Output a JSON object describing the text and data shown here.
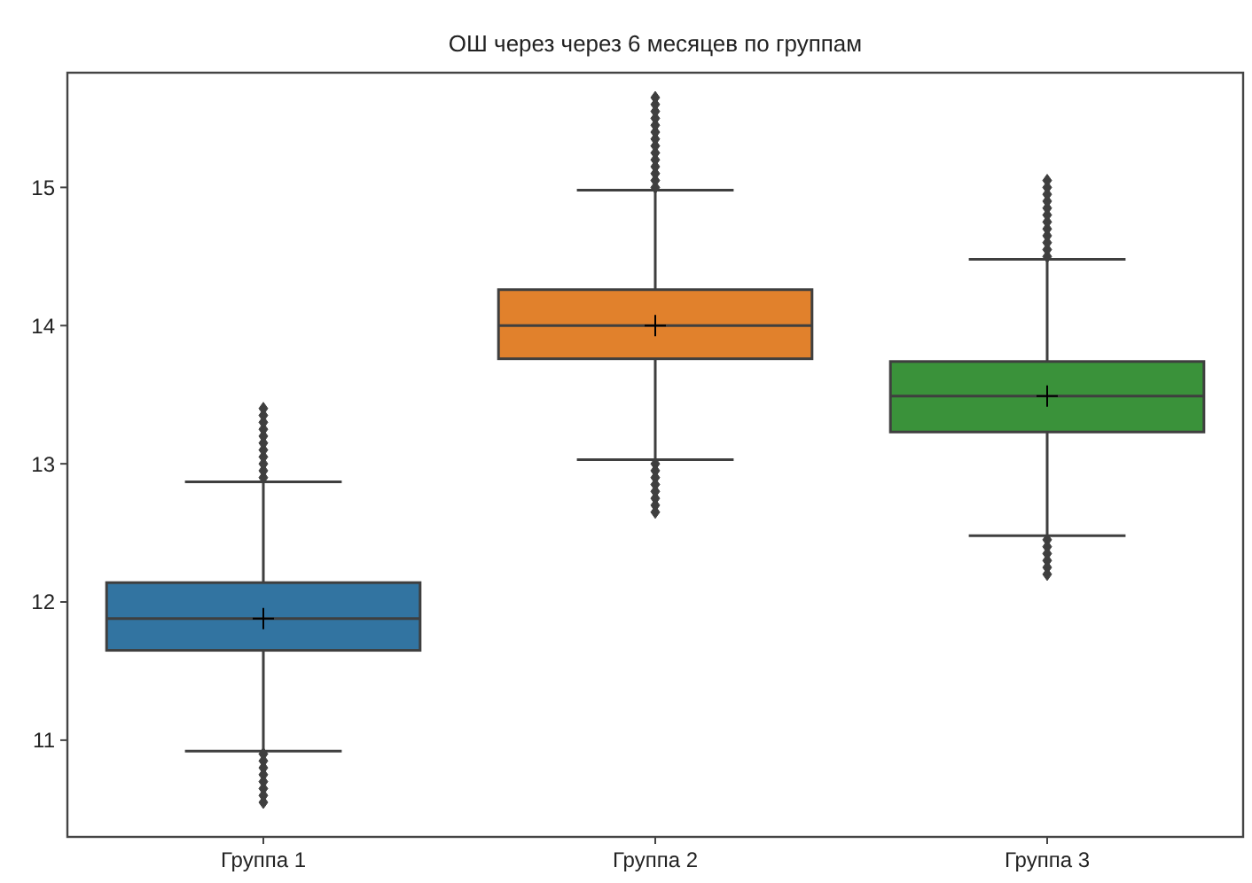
{
  "chart_data": {
    "type": "box",
    "title": "ОШ через через 6 месяцев по группам",
    "categories": [
      "Группа 1",
      "Группа 2",
      "Группа 3"
    ],
    "ylim": [
      10.3,
      15.83
    ],
    "yticks": [
      11,
      12,
      13,
      14,
      15
    ],
    "colors": [
      "#3274a1",
      "#e1812c",
      "#3a923a"
    ],
    "grid": false,
    "marker": "diamond",
    "boxes": [
      {
        "low": 10.92,
        "q1": 11.65,
        "median": 11.88,
        "q3": 12.14,
        "high": 12.87,
        "mean": 11.88,
        "outliers": [
          12.9,
          12.95,
          13.0,
          13.05,
          13.1,
          13.15,
          13.2,
          13.25,
          13.3,
          13.35,
          13.4,
          10.9,
          10.85,
          10.8,
          10.75,
          10.7,
          10.65,
          10.6,
          10.55
        ]
      },
      {
        "low": 13.03,
        "q1": 13.76,
        "median": 14.0,
        "q3": 14.26,
        "high": 14.98,
        "mean": 14.0,
        "outliers": [
          15.0,
          15.05,
          15.1,
          15.15,
          15.2,
          15.25,
          15.3,
          15.35,
          15.4,
          15.45,
          15.5,
          15.55,
          15.6,
          15.65,
          13.0,
          12.95,
          12.9,
          12.85,
          12.8,
          12.75,
          12.7,
          12.65
        ]
      },
      {
        "low": 12.48,
        "q1": 13.23,
        "median": 13.49,
        "q3": 13.74,
        "high": 14.48,
        "mean": 13.49,
        "outliers": [
          14.5,
          14.55,
          14.6,
          14.65,
          14.7,
          14.75,
          14.8,
          14.85,
          14.9,
          14.95,
          15.0,
          15.05,
          12.45,
          12.4,
          12.35,
          12.3,
          12.25,
          12.2
        ]
      }
    ]
  }
}
